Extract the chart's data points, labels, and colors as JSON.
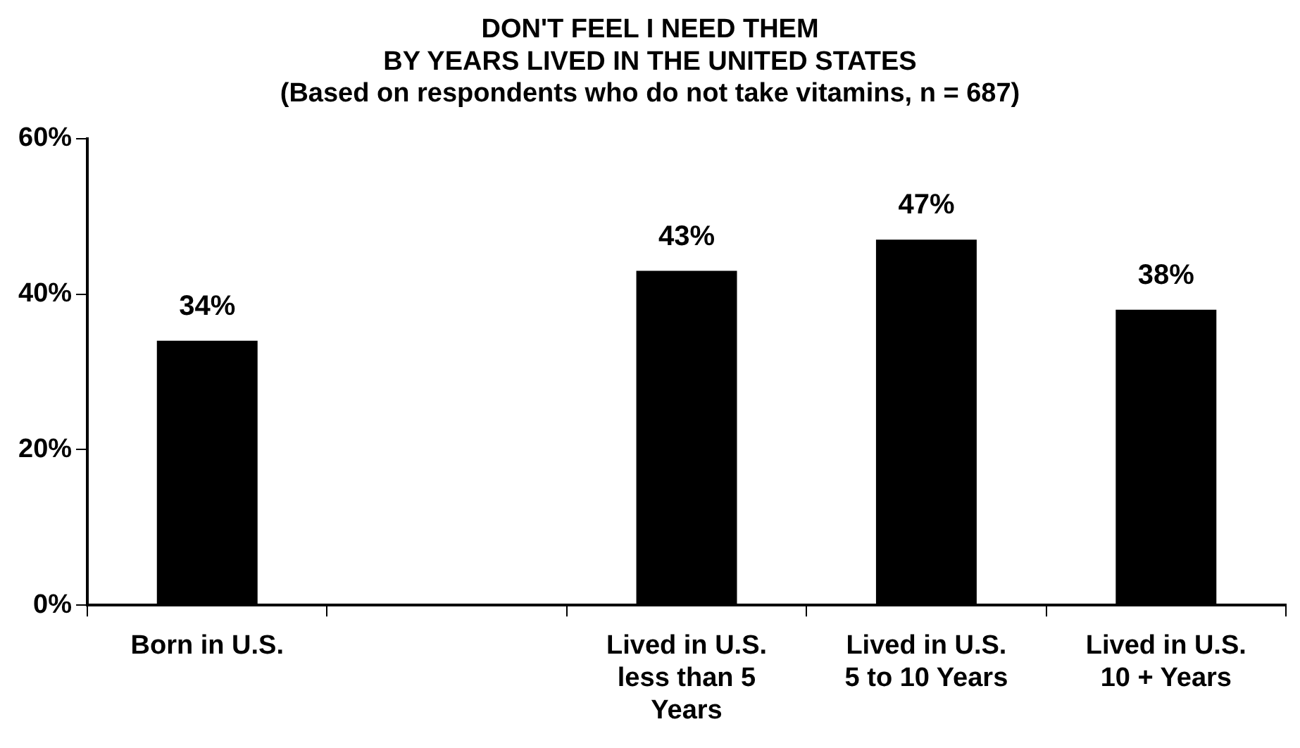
{
  "chart_data": {
    "type": "bar",
    "title": "DON'T FEEL I NEED THEM\nBY YEARS LIVED IN THE UNITED STATES",
    "subtitle": "(Based on respondents who do not take vitamins, n = 687)",
    "categories": [
      "Born in U.S.",
      null,
      "Lived in U.S. less than 5 Years",
      "Lived in U.S. 5 to 10 Years",
      "Lived in U.S. 10 + Years"
    ],
    "values": [
      34,
      null,
      43,
      47,
      38
    ],
    "color": "#000000",
    "value_labels": [
      "34%",
      null,
      "43%",
      "47%",
      "38%"
    ],
    "ylim": [
      0,
      60
    ],
    "yticks": [
      {
        "value": 0,
        "label": "0%"
      },
      {
        "value": 20,
        "label": "20%"
      },
      {
        "value": 40,
        "label": "40%"
      },
      {
        "value": 60,
        "label": "60%"
      }
    ],
    "grid": false,
    "legend": false
  }
}
